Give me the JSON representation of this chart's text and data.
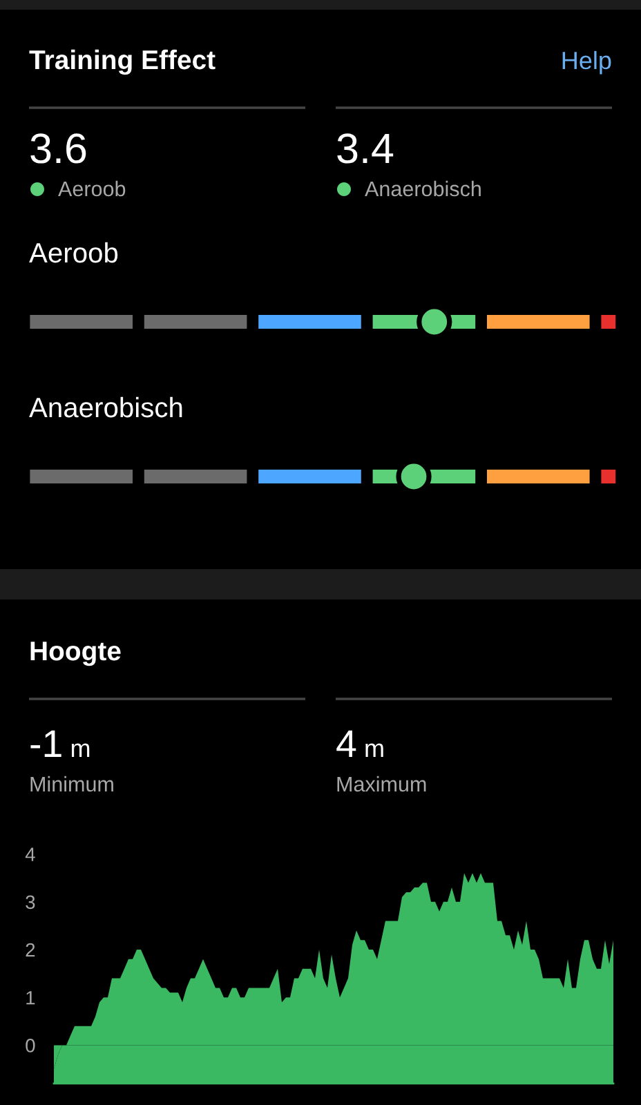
{
  "chart_data": [
    {
      "type": "other",
      "title": "Training Effect",
      "annotations": [
        "Help"
      ],
      "categories": [
        "Aeroob",
        "Anaerobisch"
      ],
      "values": [
        3.6,
        3.4
      ],
      "colors": [
        "#5cd17a",
        "#5cd17a"
      ],
      "data_labels": true
    },
    {
      "type": "area",
      "title": "Hoogte",
      "annotations": [
        "-1 m",
        "Minimum",
        "4 m",
        "Maximum"
      ],
      "categories": [
        null,
        null,
        null,
        null,
        null,
        null,
        null,
        null,
        null,
        null,
        null,
        null,
        null,
        null,
        null,
        null,
        null,
        null,
        null,
        null,
        null,
        null,
        null,
        null,
        null,
        null,
        null,
        null,
        null,
        null,
        null,
        null,
        null,
        null,
        null,
        null,
        null,
        null,
        null,
        null,
        null,
        null,
        null,
        null,
        null,
        null,
        null,
        null,
        null,
        null,
        null,
        null,
        null,
        null,
        null,
        null,
        null,
        null,
        null,
        null,
        null,
        null,
        null,
        null,
        null,
        null,
        null,
        null,
        null,
        null,
        null,
        null,
        null,
        null,
        null,
        null,
        null,
        null,
        null,
        null,
        null,
        null,
        null,
        null,
        null,
        null,
        null,
        null,
        null,
        null,
        null,
        null,
        null,
        null,
        null,
        null,
        null,
        null,
        null,
        null,
        null,
        null,
        null,
        null,
        null,
        null,
        null,
        null,
        null,
        null,
        null,
        null,
        null,
        null,
        null,
        null,
        null,
        null,
        null,
        null,
        null,
        null,
        null,
        null,
        null,
        null,
        null,
        null,
        null,
        null,
        null,
        null,
        null,
        null,
        null,
        null
      ],
      "values": [
        -0.5,
        -0.2,
        0.0,
        0.0,
        0.2,
        0.4,
        0.4,
        0.4,
        0.4,
        0.4,
        0.6,
        0.9,
        1.0,
        1.0,
        1.4,
        1.4,
        1.4,
        1.6,
        1.8,
        1.8,
        2.0,
        2.0,
        1.8,
        1.6,
        1.4,
        1.3,
        1.2,
        1.2,
        1.1,
        1.1,
        1.1,
        0.9,
        1.2,
        1.4,
        1.4,
        1.6,
        1.8,
        1.6,
        1.4,
        1.2,
        1.2,
        1.0,
        1.0,
        1.2,
        1.2,
        1.0,
        1.0,
        1.2,
        1.2,
        1.2,
        1.2,
        1.2,
        1.2,
        1.4,
        1.6,
        0.9,
        1.0,
        1.0,
        1.4,
        1.4,
        1.6,
        1.6,
        1.6,
        1.4,
        2.0,
        1.4,
        1.2,
        1.9,
        1.4,
        1.0,
        1.2,
        1.4,
        2.1,
        2.4,
        2.2,
        2.2,
        2.0,
        2.0,
        1.8,
        2.2,
        2.6,
        2.6,
        2.6,
        2.6,
        3.1,
        3.2,
        3.2,
        3.3,
        3.3,
        3.4,
        3.4,
        3.0,
        3.0,
        2.8,
        3.0,
        3.0,
        3.3,
        3.0,
        3.0,
        3.6,
        3.4,
        3.6,
        3.4,
        3.6,
        3.4,
        3.4,
        3.4,
        2.6,
        2.6,
        2.3,
        2.3,
        2.0,
        2.4,
        2.1,
        2.6,
        2.0,
        2.0,
        1.8,
        1.4,
        1.4,
        1.4,
        1.4,
        1.4,
        1.2,
        1.8,
        1.2,
        1.2,
        1.8,
        2.2,
        2.2,
        1.8,
        1.6,
        1.6,
        2.2,
        1.7,
        2.2
      ],
      "color": "#3bb862",
      "ylim": [
        -0.8,
        4
      ],
      "yticks": [
        0,
        1,
        2,
        3,
        4
      ],
      "tick_labels": "y",
      "grid": false
    }
  ]
}
